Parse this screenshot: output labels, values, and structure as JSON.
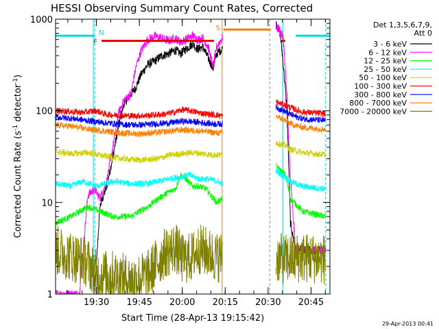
{
  "chart_data": {
    "type": "line",
    "title": "HESSI Observing Summary Count Rates, Corrected",
    "xlabel": "Start Time (28-Apr-13 19:15:42)",
    "ylabel": "Corrected Count Rate (s⁻¹ detector⁻¹)",
    "ylabel_base": "Corrected Count Rate (s",
    "ylabel_sup1": "-1",
    "ylabel_mid": " detector",
    "ylabel_sup2": "-1",
    "ylabel_end": ")",
    "y_scale": "log",
    "ylim": [
      1,
      1000
    ],
    "xlim": [
      19.262,
      20.86
    ],
    "x_ticks": [
      "19:30",
      "19:45",
      "20:00",
      "20:15",
      "20:30",
      "20:45"
    ],
    "x_tick_values": [
      19.5,
      19.75,
      20.0,
      20.25,
      20.5,
      20.75
    ],
    "y_ticks": [
      "1",
      "10",
      "100",
      "1000"
    ],
    "y_tick_values": [
      1,
      10,
      100,
      1000
    ],
    "grid": false,
    "legend_position": "right",
    "legend_header": [
      "Det 1,3,5,6,7,9,",
      "Att 0"
    ],
    "timestamp": "29-Apr-2013 00:41",
    "flags": {
      "N": {
        "label": "N",
        "color": "#00d8e8"
      },
      "F": {
        "label": "F",
        "color": "#e00000",
        "start": 19.53,
        "end": 20.185,
        "level": 580
      },
      "S": {
        "label": "S",
        "color": "#ee8000"
      }
    },
    "night_intervals": [
      [
        19.262,
        19.49
      ],
      [
        20.66,
        20.86
      ]
    ],
    "night_level": 660,
    "saa_interval": [
      20.24,
      20.515
    ],
    "saa_level": 770,
    "vertical_markers": [
      {
        "t": 19.482,
        "style": "solid",
        "color": "#00d8e8"
      },
      {
        "t": 19.49,
        "style": "dashed",
        "color": "#00d8e8"
      },
      {
        "t": 20.232,
        "style": "solid",
        "color": "#ee8000"
      },
      {
        "t": 20.51,
        "style": "dashed",
        "color": "#ee8000"
      },
      {
        "t": 20.585,
        "style": "solid",
        "color": "#00d8e8"
      },
      {
        "t": 20.835,
        "style": "dashed",
        "color": "#00d8e8"
      }
    ],
    "gaps": [
      [
        20.235,
        20.545
      ]
    ],
    "series": [
      {
        "name": "3 - 6 keV",
        "color": "#000000",
        "points": [
          [
            19.49,
            1
          ],
          [
            19.52,
            9
          ],
          [
            19.56,
            15
          ],
          [
            19.6,
            35
          ],
          [
            19.63,
            70
          ],
          [
            19.66,
            120
          ],
          [
            19.7,
            150
          ],
          [
            19.73,
            180
          ],
          [
            19.76,
            250
          ],
          [
            19.8,
            320
          ],
          [
            19.84,
            350
          ],
          [
            19.88,
            400
          ],
          [
            19.92,
            420
          ],
          [
            19.96,
            460
          ],
          [
            19.99,
            420
          ],
          [
            20.02,
            470
          ],
          [
            20.06,
            540
          ],
          [
            20.09,
            470
          ],
          [
            20.12,
            500
          ],
          [
            20.15,
            380
          ],
          [
            20.18,
            290
          ],
          [
            20.2,
            420
          ],
          [
            20.235,
            480
          ],
          [
            20.545,
            900
          ],
          [
            20.57,
            700
          ],
          [
            20.59,
            300
          ],
          [
            20.61,
            100
          ],
          [
            20.63,
            6
          ],
          [
            20.66,
            3
          ],
          [
            20.72,
            3
          ],
          [
            20.8,
            3
          ],
          [
            20.835,
            3
          ]
        ]
      },
      {
        "name": "6 - 12 keV",
        "color": "#ff00ff",
        "points": [
          [
            19.262,
            1
          ],
          [
            19.4,
            1
          ],
          [
            19.45,
            12
          ],
          [
            19.49,
            14
          ],
          [
            19.52,
            11
          ],
          [
            19.56,
            17
          ],
          [
            19.6,
            45
          ],
          [
            19.63,
            95
          ],
          [
            19.66,
            130
          ],
          [
            19.7,
            150
          ],
          [
            19.73,
            300
          ],
          [
            19.76,
            450
          ],
          [
            19.8,
            600
          ],
          [
            19.84,
            650
          ],
          [
            19.88,
            620
          ],
          [
            19.92,
            580
          ],
          [
            19.96,
            620
          ],
          [
            19.99,
            560
          ],
          [
            20.02,
            600
          ],
          [
            20.06,
            660
          ],
          [
            20.09,
            600
          ],
          [
            20.12,
            620
          ],
          [
            20.15,
            500
          ],
          [
            20.18,
            300
          ],
          [
            20.2,
            500
          ],
          [
            20.235,
            640
          ],
          [
            20.545,
            850
          ],
          [
            20.57,
            750
          ],
          [
            20.59,
            600
          ],
          [
            20.61,
            130
          ],
          [
            20.63,
            18
          ],
          [
            20.66,
            3
          ],
          [
            20.72,
            3
          ],
          [
            20.8,
            3
          ],
          [
            20.835,
            3
          ]
        ]
      },
      {
        "name": "12 - 25 keV",
        "color": "#00ff00",
        "points": [
          [
            19.262,
            6
          ],
          [
            19.35,
            7
          ],
          [
            19.45,
            9
          ],
          [
            19.52,
            8
          ],
          [
            19.6,
            7
          ],
          [
            19.7,
            7
          ],
          [
            19.75,
            8
          ],
          [
            19.8,
            9
          ],
          [
            19.86,
            11
          ],
          [
            19.92,
            13
          ],
          [
            19.96,
            14
          ],
          [
            19.99,
            20
          ],
          [
            20.02,
            18
          ],
          [
            20.06,
            15
          ],
          [
            20.1,
            15
          ],
          [
            20.14,
            14
          ],
          [
            20.18,
            11
          ],
          [
            20.2,
            10
          ],
          [
            20.235,
            11
          ],
          [
            20.545,
            25
          ],
          [
            20.6,
            20
          ],
          [
            20.63,
            11
          ],
          [
            20.7,
            8
          ],
          [
            20.835,
            7
          ]
        ]
      },
      {
        "name": "25 - 50 keV",
        "color": "#00ffff",
        "points": [
          [
            19.262,
            16
          ],
          [
            19.35,
            15
          ],
          [
            19.42,
            17
          ],
          [
            19.5,
            15
          ],
          [
            19.6,
            17
          ],
          [
            19.7,
            16
          ],
          [
            19.8,
            16
          ],
          [
            19.86,
            17
          ],
          [
            19.92,
            18
          ],
          [
            19.99,
            19
          ],
          [
            20.04,
            20
          ],
          [
            20.1,
            18
          ],
          [
            20.15,
            18
          ],
          [
            20.2,
            17
          ],
          [
            20.235,
            16
          ],
          [
            20.545,
            22
          ],
          [
            20.6,
            19
          ],
          [
            20.63,
            17
          ],
          [
            20.7,
            15
          ],
          [
            20.835,
            14
          ]
        ]
      },
      {
        "name": "50 - 100 keV",
        "color": "#d0d000",
        "points": [
          [
            19.262,
            36
          ],
          [
            19.35,
            34
          ],
          [
            19.45,
            35
          ],
          [
            19.55,
            32
          ],
          [
            19.65,
            30
          ],
          [
            19.75,
            29
          ],
          [
            19.86,
            30
          ],
          [
            19.93,
            33
          ],
          [
            20.0,
            34
          ],
          [
            20.06,
            35
          ],
          [
            20.12,
            34
          ],
          [
            20.18,
            33
          ],
          [
            20.235,
            33
          ],
          [
            20.545,
            45
          ],
          [
            20.6,
            42
          ],
          [
            20.63,
            38
          ],
          [
            20.7,
            35
          ],
          [
            20.835,
            33
          ]
        ]
      },
      {
        "name": "100 - 300 keV",
        "color": "#ff0000",
        "points": [
          [
            19.262,
            100
          ],
          [
            19.35,
            98
          ],
          [
            19.42,
            96
          ],
          [
            19.5,
            100
          ],
          [
            19.55,
            92
          ],
          [
            19.6,
            90
          ],
          [
            19.7,
            88
          ],
          [
            19.8,
            89
          ],
          [
            19.9,
            92
          ],
          [
            19.96,
            97
          ],
          [
            20.0,
            103
          ],
          [
            20.05,
            100
          ],
          [
            20.1,
            95
          ],
          [
            20.15,
            92
          ],
          [
            20.2,
            90
          ],
          [
            20.235,
            88
          ],
          [
            20.545,
            125
          ],
          [
            20.6,
            115
          ],
          [
            20.65,
            105
          ],
          [
            20.7,
            97
          ],
          [
            20.835,
            93
          ]
        ]
      },
      {
        "name": "300 - 800 keV",
        "color": "#0000ff",
        "points": [
          [
            19.262,
            85
          ],
          [
            19.35,
            83
          ],
          [
            19.45,
            78
          ],
          [
            19.55,
            74
          ],
          [
            19.65,
            71
          ],
          [
            19.75,
            70
          ],
          [
            19.85,
            72
          ],
          [
            19.93,
            74
          ],
          [
            20.0,
            77
          ],
          [
            20.06,
            76
          ],
          [
            20.12,
            74
          ],
          [
            20.18,
            72
          ],
          [
            20.235,
            72
          ],
          [
            20.545,
            110
          ],
          [
            20.6,
            98
          ],
          [
            20.65,
            88
          ],
          [
            20.7,
            82
          ],
          [
            20.835,
            78
          ]
        ]
      },
      {
        "name": "800 - 7000 keV",
        "color": "#ff8000",
        "points": [
          [
            19.262,
            70
          ],
          [
            19.35,
            68
          ],
          [
            19.45,
            63
          ],
          [
            19.55,
            60
          ],
          [
            19.65,
            57
          ],
          [
            19.75,
            56
          ],
          [
            19.85,
            58
          ],
          [
            19.93,
            60
          ],
          [
            20.0,
            62
          ],
          [
            20.06,
            61
          ],
          [
            20.12,
            60
          ],
          [
            20.18,
            58
          ],
          [
            20.235,
            57
          ],
          [
            20.545,
            88
          ],
          [
            20.6,
            78
          ],
          [
            20.65,
            70
          ],
          [
            20.7,
            66
          ],
          [
            20.835,
            63
          ]
        ]
      },
      {
        "name": "7000 - 20000 keV",
        "color": "#808000",
        "points": [
          [
            19.262,
            3
          ],
          [
            19.35,
            2.6
          ],
          [
            19.45,
            2.2
          ],
          [
            19.5,
            1.6
          ],
          [
            19.6,
            1.6
          ],
          [
            19.7,
            1.4
          ],
          [
            19.8,
            1.6
          ],
          [
            19.85,
            2.2
          ],
          [
            19.9,
            2.8
          ],
          [
            19.96,
            3.2
          ],
          [
            20.0,
            2.4
          ],
          [
            20.05,
            2.5
          ],
          [
            20.1,
            3.1
          ],
          [
            20.15,
            2.8
          ],
          [
            20.2,
            2.5
          ],
          [
            20.235,
            2.6
          ],
          [
            20.545,
            2.5
          ],
          [
            20.6,
            2.4
          ],
          [
            20.7,
            2.5
          ],
          [
            20.835,
            2.4
          ]
        ]
      }
    ]
  }
}
